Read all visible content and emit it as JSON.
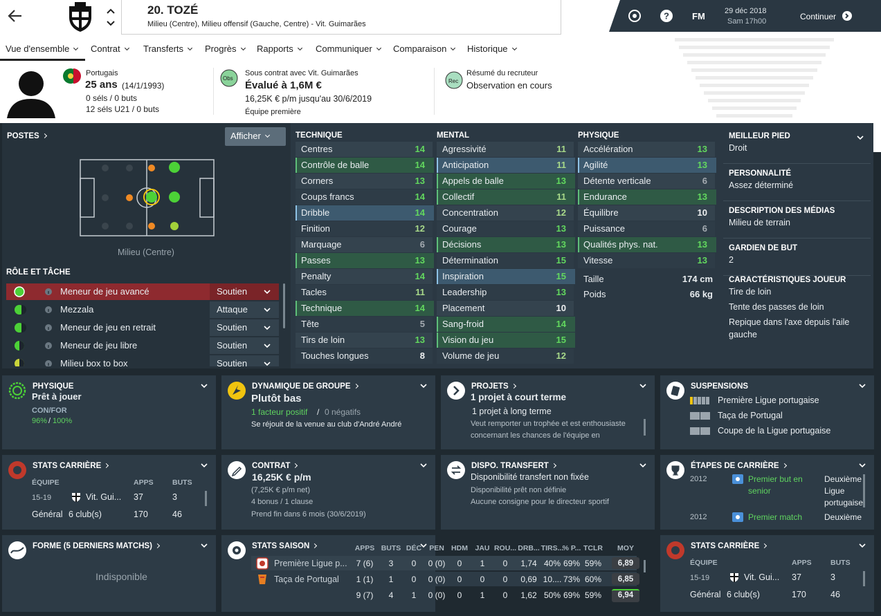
{
  "header": {
    "title": "20. TOZÉ",
    "subtitle": "Milieu (Centre), Milieu offensif (Gauche, Centre) - Vit. Guimarães",
    "logo": "FM",
    "date": "29 déc 2018",
    "time": "Sam 17h00",
    "continue": "Continuer"
  },
  "nav": [
    "Vue d'ensemble",
    "Contrat",
    "Transferts",
    "Progrès",
    "Rapports",
    "Communiquer",
    "Comparaison",
    "Historique"
  ],
  "profile": {
    "nationality": "Portugais",
    "age": "25 ans",
    "birth": "(14/1/1993)",
    "caps": "0 séls / 0 buts",
    "u21": "12 séls U21 / 0 buts"
  },
  "contract_summary": {
    "badge": "Obs",
    "club": "Sous contrat avec Vit. Guimarães",
    "value": "Évalué à 1,6M €",
    "wage": "16,25K € p/m jusqu'au 30/6/2019",
    "team": "Équipe première"
  },
  "scout": {
    "badge": "Rec",
    "title": "Résumé du recruteur",
    "status": "Observation en cours"
  },
  "positions": {
    "title": "POSTES",
    "button": "Afficher",
    "label": "Milieu (Centre)"
  },
  "roles": {
    "title": "RÔLE ET TÂCHE",
    "rows": [
      {
        "name": "Meneur de jeu avancé",
        "duty": "Soutien"
      },
      {
        "name": "Mezzala",
        "duty": "Attaque"
      },
      {
        "name": "Meneur de jeu en retrait",
        "duty": "Soutien"
      },
      {
        "name": "Meneur de jeu libre",
        "duty": "Soutien"
      },
      {
        "name": "Milieu box to box",
        "duty": "Soutien"
      }
    ]
  },
  "attributes": [
    {
      "title": "TECHNIQUE",
      "rows": [
        {
          "name": "Centres",
          "value": 14
        },
        {
          "name": "Contrôle de balle",
          "value": 14,
          "highlight": "#2f5a45"
        },
        {
          "name": "Corners",
          "value": 13
        },
        {
          "name": "Coups francs",
          "value": 14
        },
        {
          "name": "Dribble",
          "value": 14,
          "highlight": "#3d5a6f"
        },
        {
          "name": "Finition",
          "value": 12
        },
        {
          "name": "Marquage",
          "value": 6
        },
        {
          "name": "Passes",
          "value": 13,
          "highlight": "#2f5a45"
        },
        {
          "name": "Penalty",
          "value": 14
        },
        {
          "name": "Tacles",
          "value": 11
        },
        {
          "name": "Technique",
          "value": 14,
          "highlight": "#2f5a45"
        },
        {
          "name": "Tête",
          "value": 5
        },
        {
          "name": "Tirs de loin",
          "value": 13
        },
        {
          "name": "Touches longues",
          "value": 8
        }
      ]
    },
    {
      "title": "MENTAL",
      "rows": [
        {
          "name": "Agressivité",
          "value": 11
        },
        {
          "name": "Anticipation",
          "value": 11,
          "highlight": "#3d5a6f"
        },
        {
          "name": "Appels de balle",
          "value": 13,
          "highlight": "#2f5a45"
        },
        {
          "name": "Collectif",
          "value": 11,
          "highlight": "#2f5a45"
        },
        {
          "name": "Concentration",
          "value": 12
        },
        {
          "name": "Courage",
          "value": 13
        },
        {
          "name": "Décisions",
          "value": 13,
          "highlight": "#2f5a45"
        },
        {
          "name": "Détermination",
          "value": 15
        },
        {
          "name": "Inspiration",
          "value": 15,
          "highlight": "#3d5a6f"
        },
        {
          "name": "Leadership",
          "value": 13
        },
        {
          "name": "Placement",
          "value": 10
        },
        {
          "name": "Sang-froid",
          "value": 14,
          "highlight": "#2f5a45"
        },
        {
          "name": "Vision du jeu",
          "value": 15,
          "highlight": "#2f5a45"
        },
        {
          "name": "Volume de jeu",
          "value": 12
        }
      ]
    },
    {
      "title": "PHYSIQUE",
      "rows": [
        {
          "name": "Accélération",
          "value": 13
        },
        {
          "name": "Agilité",
          "value": 13,
          "highlight": "#3d5a6f"
        },
        {
          "name": "Détente verticale",
          "value": 6
        },
        {
          "name": "Endurance",
          "value": 13,
          "highlight": "#2f5a45"
        },
        {
          "name": "Équilibre",
          "value": 10
        },
        {
          "name": "Puissance",
          "value": 6
        },
        {
          "name": "Qualités phys. nat.",
          "value": 13,
          "highlight": "#2f5a45"
        },
        {
          "name": "Vitesse",
          "value": 13
        }
      ]
    }
  ],
  "measures": [
    {
      "name": "Taille",
      "value": "174 cm"
    },
    {
      "name": "Poids",
      "value": "66 kg"
    }
  ],
  "details": [
    {
      "title": "MEILLEUR PIED",
      "lines": [
        "Droit"
      ]
    },
    {
      "title": "PERSONNALITÉ",
      "lines": [
        "Assez déterminé"
      ]
    },
    {
      "title": "DESCRIPTION DES MÉDIAS",
      "lines": [
        "Milieu de terrain"
      ]
    },
    {
      "title": "GARDIEN DE BUT",
      "lines": [
        2
      ]
    },
    {
      "title": "CARACTÉRISTIQUES JOUEUR",
      "lines": [
        "Tire de loin",
        "Tente des passes de loin",
        "Repique dans l'axe depuis l'aile gauche"
      ]
    }
  ],
  "cards": {
    "physique": {
      "title": "PHYSIQUE",
      "status": "Prêt à jouer",
      "label": "CON/FOR",
      "con": "96%",
      "sep": "/",
      "for": "100%"
    },
    "group": {
      "title": "DYNAMIQUE DE GROUPE",
      "status": "Plutôt bas",
      "positive": "1 facteur positif",
      "sep": "/",
      "negative": "0 négatifs",
      "note": "Se réjouit de la venue au club d'André André"
    },
    "projects": {
      "title": "PROJETS",
      "short": "1 projet à court terme",
      "long": "1 projet à long terme",
      "note": "Veut remporter un trophée et est enthousiaste concernant les chances de l'équipe en"
    },
    "suspensions": {
      "title": "SUSPENSIONS",
      "rows": [
        "Première Ligue portugaise",
        "Taça de Portugal",
        "Coupe de la Ligue portugaise"
      ]
    },
    "career": {
      "title": "STATS CARRIÈRE",
      "headers": [
        "ÉQUIPE",
        "APPS",
        "BUTS"
      ],
      "rows": [
        {
          "period": "15-19",
          "club": "Vit. Gui...",
          "apps": 37,
          "goals": 3
        },
        {
          "period": "Général",
          "club": "6 club(s)",
          "apps": 170,
          "goals": 46
        }
      ]
    },
    "contract": {
      "title": "CONTRAT",
      "wage": "16,25K € p/m",
      "net": "(7,25K € p/m net)",
      "bonus": "4 bonus / 1 clause",
      "end": "Prend fin dans 6 mois (30/6/2019)"
    },
    "transfer": {
      "title": "DISPO. TRANSFERT",
      "status": "Disponibilité transfert non fixée",
      "loan": "Disponibilité prêt non définie",
      "note": "Aucune consigne pour le directeur sportif"
    },
    "milestones": {
      "title": "ÉTAPES DE CARRIÈRE",
      "rows": [
        {
          "year": 2012,
          "event": "Premier but en senior",
          "detail": "Deuxième Ligue portugaise"
        },
        {
          "year": 2012,
          "event": "Premier match",
          "detail": "Deuxième"
        }
      ]
    },
    "form": {
      "title": "FORME (5 DERNIERS MATCHS)",
      "text": "Indisponible"
    },
    "season": {
      "title": "STATS SAISON",
      "headers": [
        "APPS",
        "BUTS",
        "DÉC",
        "PEN",
        "HDM",
        "JAU",
        "ROU...",
        "DRB...",
        "TIRS...",
        "% P...",
        "TCLR",
        "MOY"
      ],
      "rows": [
        {
          "competition": "Première Ligue p...",
          "stats": [
            "7 (6)",
            3,
            0,
            "0 (0)",
            0,
            1,
            0,
            "1,74",
            "40%",
            "69%",
            "59%",
            "6,89"
          ]
        },
        {
          "competition": "Taça de Portugal",
          "stats": [
            "1 (1)",
            1,
            0,
            "0 (0)",
            0,
            0,
            0,
            "0,69",
            "10....",
            "73%",
            "60%",
            "6,85"
          ]
        },
        {
          "competition": null,
          "stats": [
            "9 (7)",
            4,
            1,
            "0 (0)",
            0,
            1,
            0,
            "1,62",
            "50%",
            "69%",
            "59%",
            "6,94"
          ]
        }
      ]
    }
  }
}
